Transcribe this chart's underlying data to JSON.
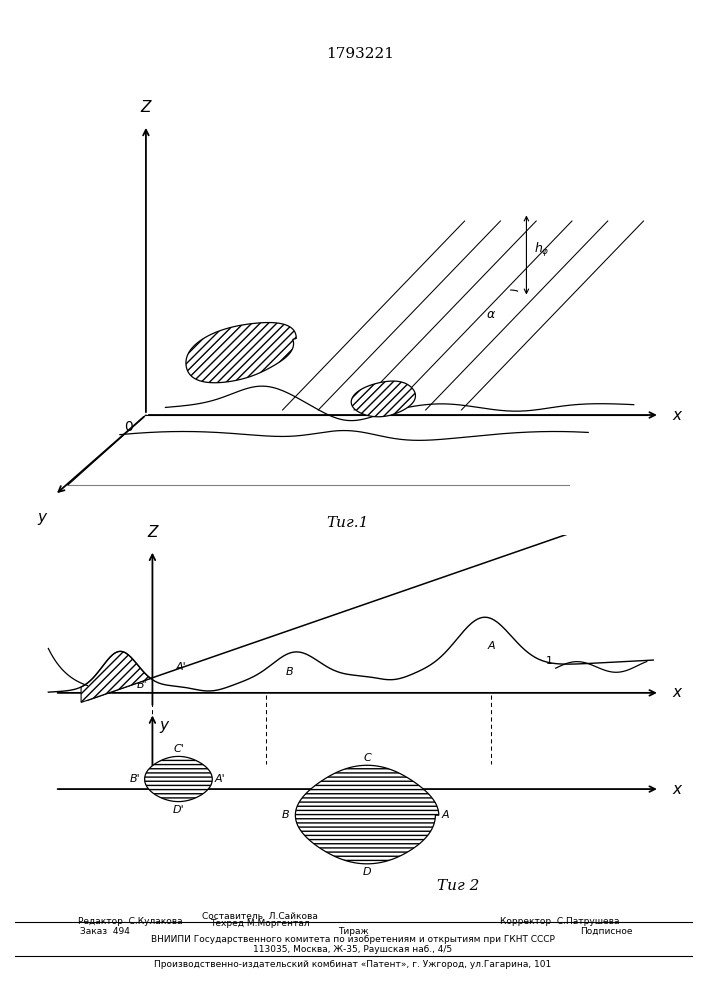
{
  "title": "1793221",
  "fig1_caption": "Τиг.1",
  "fig2_caption": "Τиг 2",
  "footer_col1_line1": "Составитель  Л.Сайкова",
  "footer_col1_line2": "Техред М.Моргентал",
  "footer_editor": "Редактор  С.Кулакова",
  "footer_corrector": "Корректор  С.Патрушева",
  "footer_order": "Заказ  494",
  "footer_tirazh": "Тираж",
  "footer_podp": "Подписное",
  "footer_vniip": "ВНИИПИ Государственного комитета по изобретениям и открытиям при ГКНТ СССР",
  "footer_addr": "113035, Москва, Ж-35, Раушская наб., 4/5",
  "footer_plant": "Производственно-издательский комбинат «Патент», г. Ужгород, ул.Гагарина, 101"
}
